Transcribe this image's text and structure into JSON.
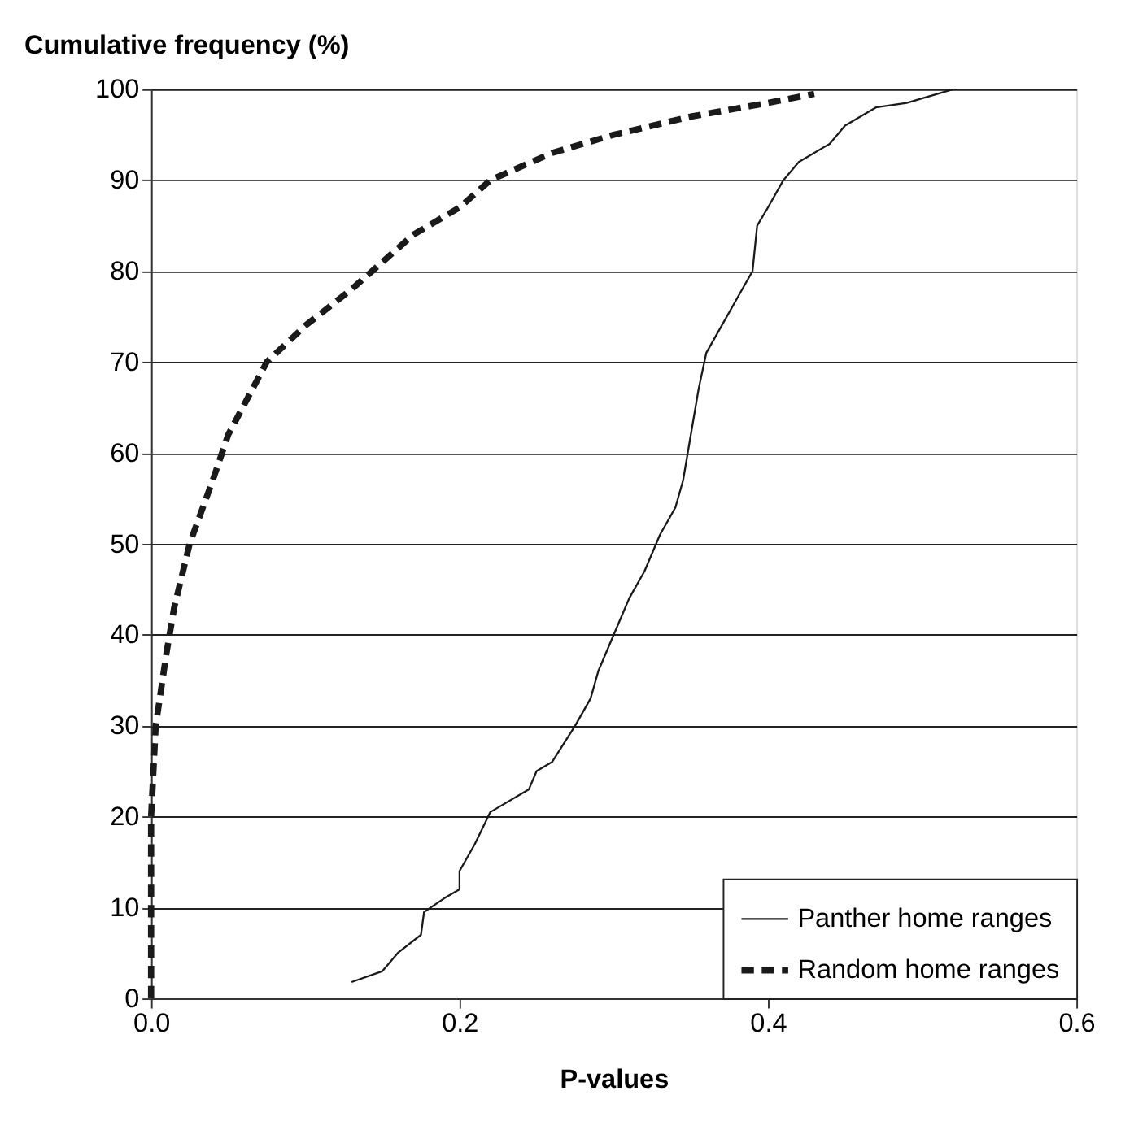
{
  "chart_data": {
    "type": "line",
    "ylabel": "Cumulative frequency (%)",
    "xlabel": "P-values",
    "xlim": [
      0,
      0.6
    ],
    "xticks": [
      {
        "value": 0,
        "label": "0.0"
      },
      0.2,
      0.4,
      0.6
    ],
    "ylim": [
      0,
      100
    ],
    "yticks": [
      0,
      10,
      20,
      30,
      40,
      50,
      60,
      70,
      80,
      90,
      100
    ],
    "grid": "y",
    "legend": "bottom right",
    "marker": "none",
    "series": [
      {
        "name": "Panther home ranges",
        "color": "#1a1a1a",
        "line_style": "solid",
        "x": [
          0.13,
          0.15,
          0.16,
          0.175,
          0.177,
          0.19,
          0.2,
          0.2,
          0.21,
          0.22,
          0.245,
          0.25,
          0.26,
          0.275,
          0.285,
          0.29,
          0.3,
          0.305,
          0.31,
          0.32,
          0.33,
          0.34,
          0.345,
          0.35,
          0.355,
          0.36,
          0.37,
          0.38,
          0.39,
          0.393,
          0.4,
          0.41,
          0.42,
          0.44,
          0.45,
          0.47,
          0.49,
          0.52
        ],
        "values": [
          1.8,
          3,
          5,
          7,
          9.5,
          11,
          12,
          14,
          17,
          20.5,
          23,
          25,
          26,
          30,
          33,
          36,
          40,
          42,
          44,
          47,
          51,
          54,
          57,
          62,
          67,
          71,
          74,
          77,
          80,
          85,
          87,
          90,
          92,
          94,
          96,
          98,
          98.5,
          100
        ]
      },
      {
        "name": "Random home ranges",
        "color": "#1a1a1a",
        "line_style": "dashed",
        "x": [
          0,
          0,
          0.003,
          0.01,
          0.015,
          0.025,
          0.04,
          0.05,
          0.075,
          0.1,
          0.13,
          0.15,
          0.17,
          0.2,
          0.22,
          0.26,
          0.3,
          0.35,
          0.4,
          0.43
        ],
        "values": [
          0,
          20,
          30,
          38,
          43,
          50,
          57,
          62,
          70,
          74,
          78,
          81,
          84,
          87,
          90,
          93,
          95,
          97,
          98.5,
          99.5
        ]
      }
    ]
  }
}
